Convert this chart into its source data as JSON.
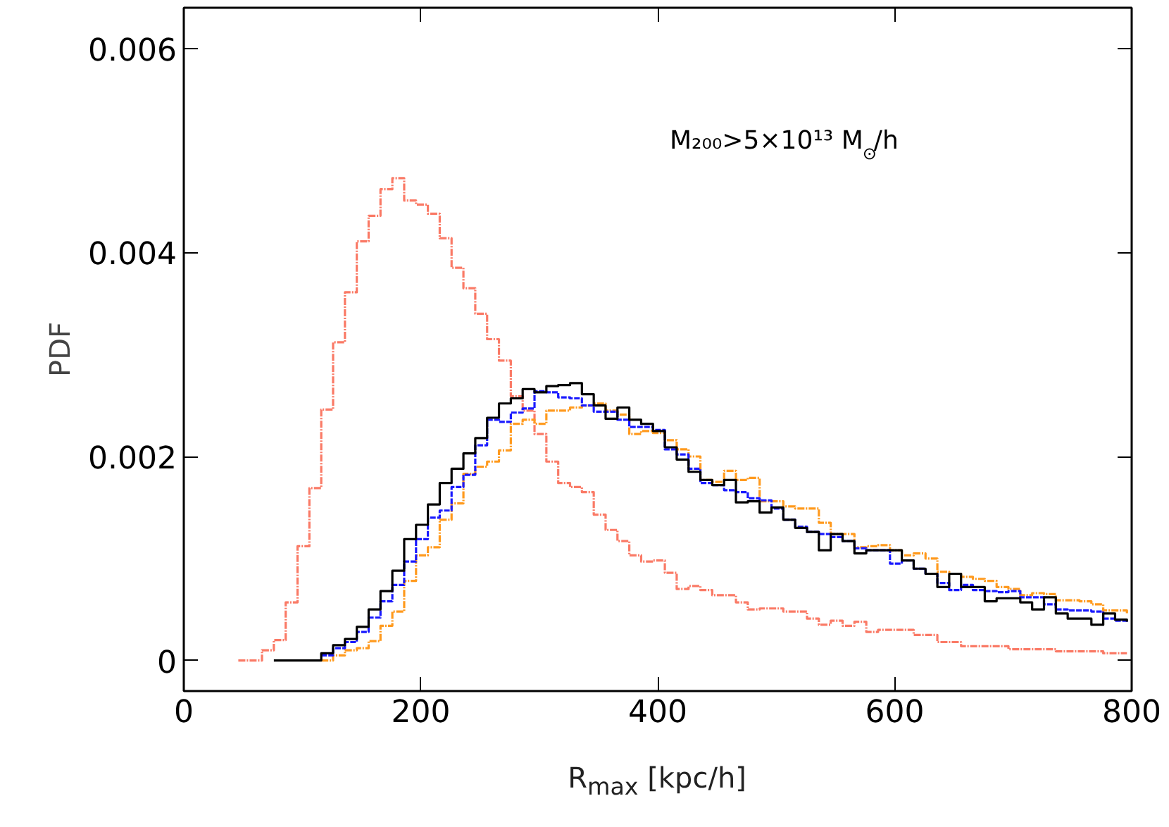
{
  "chart_data": {
    "type": "step",
    "xlabel": "R$_{max}$ [kpc/h]",
    "ylabel": "PDF",
    "annotations": [
      "M₂₀₀>5×10¹³ M$_{⊙}$/h"
    ],
    "xlim": [
      0,
      800
    ],
    "ylim": [
      -0.0003,
      0.0064
    ],
    "xticks": [
      0,
      200,
      400,
      600,
      800
    ],
    "yticks": [
      0,
      0.002,
      0.004,
      0.006
    ],
    "grid": false,
    "marker": "none",
    "series": [
      {
        "color": "#fa7a66",
        "line_style": "dashdot",
        "x": [
          46,
          56,
          66,
          76,
          86,
          96,
          106,
          116,
          126,
          136,
          146,
          156,
          166,
          176,
          186,
          196,
          206,
          216,
          226,
          236,
          246,
          256,
          266,
          276,
          286,
          296,
          306,
          316,
          326,
          336,
          346,
          356,
          366,
          376,
          386,
          396,
          406,
          416,
          426,
          436,
          446,
          456,
          466,
          476,
          486,
          496,
          506,
          516,
          526,
          536,
          546,
          556,
          566,
          576,
          586,
          596,
          606,
          616,
          626,
          636,
          646,
          656,
          666,
          676,
          686,
          696,
          706,
          716,
          726,
          736,
          746,
          756,
          766,
          776,
          786,
          796
        ],
        "values": [
          0,
          0,
          0.0001,
          0.0002,
          0.00057,
          0.00112,
          0.00169,
          0.00246,
          0.00312,
          0.00361,
          0.00411,
          0.00436,
          0.00462,
          0.00473,
          0.00451,
          0.00447,
          0.00438,
          0.00414,
          0.00385,
          0.00365,
          0.0034,
          0.00315,
          0.00294,
          0.00259,
          0.00245,
          0.00222,
          0.00195,
          0.00174,
          0.0017,
          0.00165,
          0.00143,
          0.00128,
          0.00117,
          0.00103,
          0.00097,
          0.00098,
          0.00086,
          0.0007,
          0.00073,
          0.00069,
          0.00064,
          0.00064,
          0.00057,
          0.0005,
          0.00051,
          0.00051,
          0.00048,
          0.00048,
          0.00041,
          0.00035,
          0.00039,
          0.00034,
          0.00038,
          0.00028,
          0.0003,
          0.0003,
          0.0003,
          0.00025,
          0.00025,
          0.00018,
          0.00018,
          0.00014,
          0.00014,
          0.00014,
          0.00014,
          0.00011,
          0.00011,
          0.00011,
          0.00011,
          9e-05,
          9e-05,
          9e-05,
          9e-05,
          7e-05,
          7e-05,
          7e-05
        ]
      },
      {
        "color": "#ff9a1e",
        "line_style": "dashdot",
        "x": [
          116,
          126,
          136,
          146,
          156,
          166,
          176,
          186,
          196,
          206,
          216,
          226,
          236,
          246,
          256,
          266,
          276,
          286,
          296,
          306,
          316,
          326,
          336,
          346,
          356,
          366,
          376,
          386,
          396,
          406,
          416,
          426,
          436,
          446,
          456,
          466,
          476,
          486,
          496,
          506,
          516,
          526,
          536,
          546,
          556,
          566,
          576,
          586,
          596,
          606,
          616,
          626,
          636,
          646,
          656,
          666,
          676,
          686,
          696,
          706,
          716,
          726,
          736,
          746,
          756,
          766,
          776,
          786,
          796
        ],
        "values": [
          0,
          5e-05,
          0.0001,
          0.00012,
          0.00019,
          0.00034,
          0.00048,
          0.00078,
          0.00103,
          0.00111,
          0.00138,
          0.00154,
          0.00183,
          0.0019,
          0.00195,
          0.00206,
          0.00232,
          0.00236,
          0.00232,
          0.00245,
          0.00245,
          0.00248,
          0.0025,
          0.00252,
          0.00245,
          0.00241,
          0.00222,
          0.00225,
          0.00223,
          0.00216,
          0.00207,
          0.002,
          0.00177,
          0.00175,
          0.00186,
          0.00177,
          0.00179,
          0.00156,
          0.00156,
          0.00151,
          0.00149,
          0.00149,
          0.00135,
          0.00124,
          0.00124,
          0.00111,
          0.00112,
          0.00113,
          0.00108,
          0.00103,
          0.00105,
          0.001,
          0.00087,
          0.00085,
          0.00082,
          0.0008,
          0.00078,
          0.00072,
          0.0007,
          0.00064,
          0.00066,
          0.00065,
          0.00059,
          0.00059,
          0.00058,
          0.00055,
          0.00049,
          0.00049,
          0.00046
        ]
      },
      {
        "color": "#1a1aff",
        "line_style": "dashed",
        "x": [
          116,
          126,
          136,
          146,
          156,
          166,
          176,
          186,
          196,
          206,
          216,
          226,
          236,
          246,
          256,
          266,
          276,
          286,
          296,
          306,
          316,
          326,
          336,
          346,
          356,
          366,
          376,
          386,
          396,
          406,
          416,
          426,
          436,
          446,
          456,
          466,
          476,
          486,
          496,
          506,
          516,
          526,
          536,
          546,
          556,
          566,
          576,
          586,
          596,
          606,
          616,
          626,
          636,
          646,
          656,
          666,
          676,
          686,
          696,
          706,
          716,
          726,
          736,
          746,
          756,
          766,
          776,
          786,
          796
        ],
        "values": [
          5e-05,
          0.00012,
          0.00018,
          0.00028,
          0.00042,
          0.00058,
          0.00074,
          0.00097,
          0.00119,
          0.0014,
          0.00147,
          0.0017,
          0.00182,
          0.00211,
          0.00236,
          0.00234,
          0.00243,
          0.00247,
          0.00264,
          0.00263,
          0.00258,
          0.00257,
          0.0025,
          0.00244,
          0.00244,
          0.00236,
          0.00229,
          0.00229,
          0.00226,
          0.00207,
          0.00202,
          0.00188,
          0.00174,
          0.00172,
          0.00167,
          0.00165,
          0.00159,
          0.00157,
          0.00149,
          0.00138,
          0.00131,
          0.00126,
          0.00124,
          0.00121,
          0.00117,
          0.0011,
          0.00108,
          0.00108,
          0.00095,
          0.00098,
          0.0009,
          0.00085,
          0.00076,
          0.00069,
          0.00074,
          0.00069,
          0.00068,
          0.00067,
          0.00068,
          0.00062,
          0.00062,
          0.00055,
          0.0005,
          0.00049,
          0.00049,
          0.00048,
          0.00041,
          0.00039,
          0.00038
        ]
      },
      {
        "color": "#000000",
        "line_style": "solid",
        "x": [
          76,
          86,
          96,
          106,
          116,
          126,
          136,
          146,
          156,
          166,
          176,
          186,
          196,
          206,
          216,
          226,
          236,
          246,
          256,
          266,
          276,
          286,
          296,
          306,
          316,
          326,
          336,
          346,
          356,
          366,
          376,
          386,
          396,
          406,
          416,
          426,
          436,
          446,
          456,
          466,
          476,
          486,
          496,
          506,
          516,
          526,
          536,
          546,
          556,
          566,
          576,
          586,
          596,
          606,
          616,
          626,
          636,
          646,
          656,
          666,
          676,
          686,
          696,
          706,
          716,
          726,
          736,
          746,
          756,
          766,
          776,
          786,
          796
        ],
        "values": [
          0,
          0,
          0,
          0,
          7e-05,
          0.00015,
          0.00021,
          0.00033,
          0.0005,
          0.00068,
          0.00088,
          0.00119,
          0.00133,
          0.00153,
          0.00174,
          0.00188,
          0.00203,
          0.00218,
          0.00238,
          0.00252,
          0.00257,
          0.00266,
          0.00263,
          0.00269,
          0.0027,
          0.00272,
          0.00261,
          0.0025,
          0.00237,
          0.00248,
          0.00236,
          0.00232,
          0.00225,
          0.00209,
          0.00197,
          0.00185,
          0.00177,
          0.00172,
          0.00177,
          0.00155,
          0.00156,
          0.00145,
          0.0015,
          0.00138,
          0.0013,
          0.00126,
          0.00108,
          0.00124,
          0.00117,
          0.00105,
          0.00108,
          0.00108,
          0.00108,
          0.00098,
          0.0009,
          0.00085,
          0.00072,
          0.00085,
          0.00072,
          0.00072,
          0.00058,
          0.00061,
          0.00061,
          0.00057,
          0.0005,
          0.00062,
          0.00046,
          0.00041,
          0.00041,
          0.00035,
          0.00046,
          0.0004,
          0.00038
        ]
      }
    ]
  }
}
